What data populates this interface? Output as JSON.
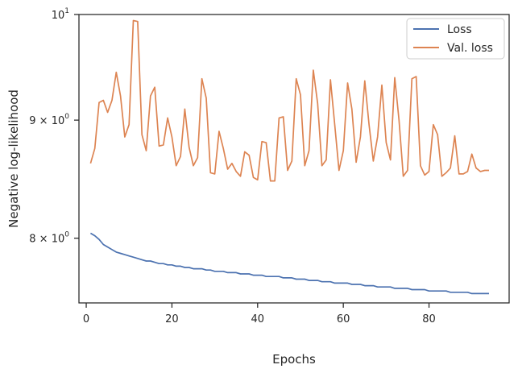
{
  "chart_data": {
    "type": "line",
    "xlabel": "Epochs",
    "ylabel": "Negative log-likelihood",
    "yscale": "log",
    "xlim": [
      -1.7,
      98.7
    ],
    "ylim": [
      7.5,
      10.0
    ],
    "x_ticks": [
      {
        "value": 0,
        "label": "0"
      },
      {
        "value": 20,
        "label": "20"
      },
      {
        "value": 40,
        "label": "40"
      },
      {
        "value": 60,
        "label": "60"
      },
      {
        "value": 80,
        "label": "80"
      }
    ],
    "y_ticks": [
      {
        "value": 8,
        "label": "8 × 10",
        "exp": "0"
      },
      {
        "value": 9,
        "label": "9 × 10",
        "exp": "0"
      },
      {
        "value": 10,
        "label": "10",
        "exp": "1"
      }
    ],
    "legend": {
      "position": "top-right"
    },
    "x": [
      1,
      2,
      3,
      4,
      5,
      6,
      7,
      8,
      9,
      10,
      11,
      12,
      13,
      14,
      15,
      16,
      17,
      18,
      19,
      20,
      21,
      22,
      23,
      24,
      25,
      26,
      27,
      28,
      29,
      30,
      31,
      32,
      33,
      34,
      35,
      36,
      37,
      38,
      39,
      40,
      41,
      42,
      43,
      44,
      45,
      46,
      47,
      48,
      49,
      50,
      51,
      52,
      53,
      54,
      55,
      56,
      57,
      58,
      59,
      60,
      61,
      62,
      63,
      64,
      65,
      66,
      67,
      68,
      69,
      70,
      71,
      72,
      73,
      74,
      75,
      76,
      77,
      78,
      79,
      80,
      81,
      82,
      83,
      84,
      85,
      86,
      87,
      88,
      89,
      90,
      91,
      92,
      93,
      94
    ],
    "series": [
      {
        "name": "Loss",
        "color": "#4c72b0",
        "values": [
          8.04,
          8.02,
          7.99,
          7.95,
          7.93,
          7.91,
          7.89,
          7.88,
          7.87,
          7.86,
          7.85,
          7.84,
          7.83,
          7.82,
          7.82,
          7.81,
          7.8,
          7.8,
          7.79,
          7.79,
          7.78,
          7.78,
          7.77,
          7.77,
          7.76,
          7.76,
          7.76,
          7.75,
          7.75,
          7.74,
          7.74,
          7.74,
          7.73,
          7.73,
          7.73,
          7.72,
          7.72,
          7.72,
          7.71,
          7.71,
          7.71,
          7.7,
          7.7,
          7.7,
          7.7,
          7.69,
          7.69,
          7.69,
          7.68,
          7.68,
          7.68,
          7.67,
          7.67,
          7.67,
          7.66,
          7.66,
          7.66,
          7.65,
          7.65,
          7.65,
          7.65,
          7.64,
          7.64,
          7.64,
          7.63,
          7.63,
          7.63,
          7.62,
          7.62,
          7.62,
          7.62,
          7.61,
          7.61,
          7.61,
          7.61,
          7.6,
          7.6,
          7.6,
          7.6,
          7.59,
          7.59,
          7.59,
          7.59,
          7.59,
          7.58,
          7.58,
          7.58,
          7.58,
          7.58,
          7.57,
          7.57,
          7.57,
          7.57,
          7.57
        ]
      },
      {
        "name": "Val. loss",
        "color": "#dd8452",
        "values": [
          8.62,
          8.75,
          9.16,
          9.18,
          9.07,
          9.18,
          9.44,
          9.22,
          8.85,
          8.96,
          9.94,
          9.93,
          8.87,
          8.73,
          9.22,
          9.3,
          8.77,
          8.78,
          9.02,
          8.85,
          8.6,
          8.68,
          9.1,
          8.76,
          8.6,
          8.67,
          9.38,
          9.2,
          8.54,
          8.53,
          8.9,
          8.75,
          8.57,
          8.62,
          8.55,
          8.51,
          8.72,
          8.69,
          8.5,
          8.48,
          8.81,
          8.8,
          8.47,
          8.47,
          9.02,
          9.03,
          8.56,
          8.64,
          9.38,
          9.23,
          8.6,
          8.73,
          9.46,
          9.15,
          8.6,
          8.65,
          9.37,
          8.96,
          8.56,
          8.73,
          9.34,
          9.1,
          8.63,
          8.85,
          9.36,
          8.96,
          8.64,
          8.85,
          9.32,
          8.8,
          8.65,
          9.39,
          9.0,
          8.51,
          8.56,
          9.38,
          9.4,
          8.6,
          8.52,
          8.55,
          8.96,
          8.87,
          8.51,
          8.54,
          8.58,
          8.86,
          8.53,
          8.53,
          8.55,
          8.7,
          8.58,
          8.55,
          8.56,
          8.56
        ]
      }
    ]
  }
}
